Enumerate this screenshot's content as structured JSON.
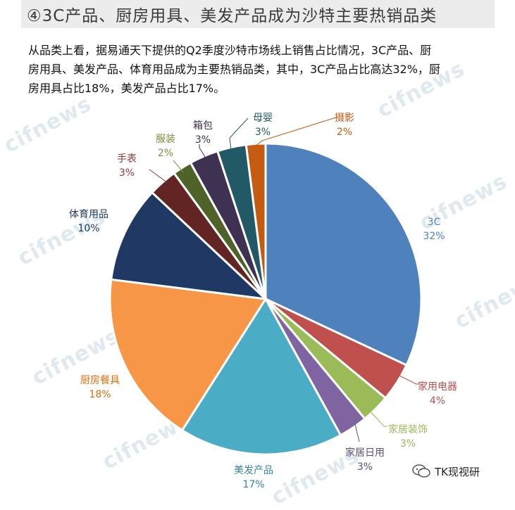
{
  "title": "④3C产品、厨房用具、美发产品成为沙特主要热销品类",
  "paragraph_lines": [
    "从品类上看，据易通天下提供的Q2季度沙特市场线上销售占比情况，3C产品、厨",
    "房用具、美发产品、体育用品成为主要热销品类，其中，3C产品占比高达32%，厨",
    "房用具占比18%，美发产品占比17%。"
  ],
  "watermark_text": "cifnews",
  "wechat_account": "TK现视研",
  "chart_data": {
    "type": "pie",
    "series": [
      {
        "label": "3C",
        "value": 32,
        "value_label": "32%",
        "color": "#4f81bd",
        "label_color": "#4f81bd"
      },
      {
        "label": "家用电器",
        "value": 4,
        "value_label": "4%",
        "color": "#c0504d",
        "label_color": "#c0504d"
      },
      {
        "label": "家居装饰",
        "value": 3,
        "value_label": "3%",
        "color": "#9bbb59",
        "label_color": "#9bbb59"
      },
      {
        "label": "家居日用",
        "value": 3,
        "value_label": "3%",
        "color": "#8064a2",
        "label_color": "#604a7b"
      },
      {
        "label": "美发产品",
        "value": 17,
        "value_label": "17%",
        "color": "#4bacc6",
        "label_color": "#31859c"
      },
      {
        "label": "厨房餐具",
        "value": 18,
        "value_label": "18%",
        "color": "#f79646",
        "label_color": "#e36c09"
      },
      {
        "label": "体育用品",
        "value": 10,
        "value_label": "10%",
        "color": "#1f3864",
        "label_color": "#1f3864"
      },
      {
        "label": "手表",
        "value": 3,
        "value_label": "3%",
        "color": "#632523",
        "label_color": "#953735"
      },
      {
        "label": "服装",
        "value": 2,
        "value_label": "2%",
        "color": "#4f6228",
        "label_color": "#76923c"
      },
      {
        "label": "箱包",
        "value": 3,
        "value_label": "3%",
        "color": "#3f3151",
        "label_color": "#3f3151"
      },
      {
        "label": "母婴",
        "value": 3,
        "value_label": "3%",
        "color": "#215967",
        "label_color": "#215967"
      },
      {
        "label": "摄影",
        "value": 2,
        "value_label": "2%",
        "color": "#c55a11",
        "label_color": "#c55a11"
      }
    ]
  }
}
